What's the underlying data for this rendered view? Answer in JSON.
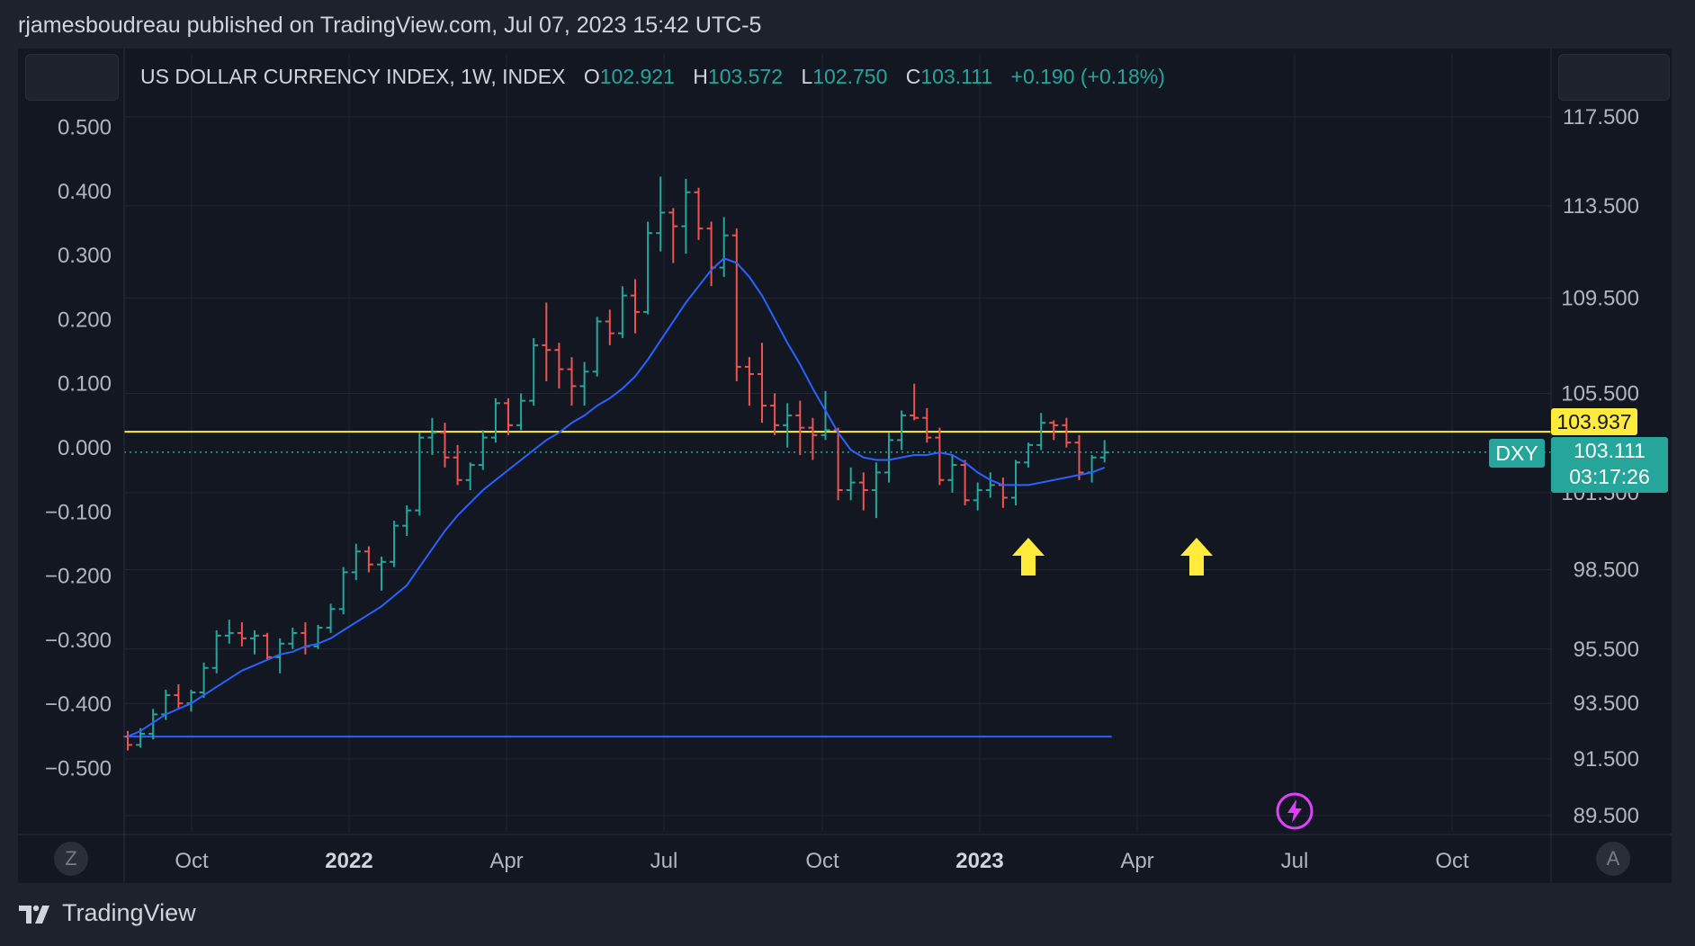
{
  "header": {
    "published_line": "rjamesboudreau published on TradingView.com, Jul 07, 2023 15:42 UTC-5"
  },
  "legend": {
    "symbol": "US DOLLAR CURRENCY INDEX, 1W, INDEX",
    "o_label": "O",
    "o_value": "102.921",
    "h_label": "H",
    "h_value": "103.572",
    "l_label": "L",
    "l_value": "102.750",
    "c_label": "C",
    "c_value": "103.111",
    "change": "+0.190 (+0.18%)"
  },
  "badges": {
    "level_value": "103.937",
    "symbol_tag": "DXY",
    "last_price": "103.111",
    "countdown": "03:17:26"
  },
  "buttons": {
    "left_scale": "Z",
    "right_scale": "A"
  },
  "footer": {
    "brand": "TradingView"
  },
  "colors": {
    "up": "#26a69a",
    "down": "#ef5350",
    "ma": "#2962ff",
    "level": "#ffeb3b",
    "background": "#131722"
  },
  "chart_data": {
    "type": "candlestick",
    "title": "US DOLLAR CURRENCY INDEX, 1W, INDEX",
    "timeframe": "1W",
    "left_axis": {
      "ticks": [
        "0.500",
        "0.400",
        "0.300",
        "0.200",
        "0.100",
        "0.000",
        "−0.100",
        "−0.200",
        "−0.300",
        "−0.400",
        "−0.500"
      ]
    },
    "right_axis": {
      "scale": "log",
      "ticks": [
        "117.500",
        "113.500",
        "109.500",
        "105.500",
        "101.500",
        "98.500",
        "95.500",
        "93.500",
        "91.500",
        "89.500"
      ]
    },
    "x_axis": {
      "ticks": [
        {
          "label": "Oct",
          "bold": false
        },
        {
          "label": "2022",
          "bold": true
        },
        {
          "label": "Apr",
          "bold": false
        },
        {
          "label": "Jul",
          "bold": false
        },
        {
          "label": "Oct",
          "bold": false
        },
        {
          "label": "2023",
          "bold": true
        },
        {
          "label": "Apr",
          "bold": false
        },
        {
          "label": "Jul",
          "bold": false
        },
        {
          "label": "Oct",
          "bold": false
        }
      ]
    },
    "candles": [
      [
        92.3,
        92.5,
        91.8,
        92.0
      ],
      [
        92.0,
        92.6,
        91.9,
        92.4
      ],
      [
        92.4,
        93.3,
        92.2,
        93.1
      ],
      [
        93.1,
        94.0,
        92.9,
        93.8
      ],
      [
        93.8,
        94.2,
        93.3,
        93.5
      ],
      [
        93.5,
        94.0,
        93.2,
        93.9
      ],
      [
        93.9,
        95.0,
        93.7,
        94.8
      ],
      [
        94.8,
        96.2,
        94.6,
        96.0
      ],
      [
        96.0,
        96.6,
        95.7,
        96.1
      ],
      [
        96.1,
        96.5,
        95.6,
        95.9
      ],
      [
        95.9,
        96.2,
        95.3,
        96.0
      ],
      [
        96.0,
        96.1,
        95.1,
        95.2
      ],
      [
        95.2,
        95.9,
        94.6,
        95.7
      ],
      [
        95.7,
        96.3,
        95.5,
        96.1
      ],
      [
        96.1,
        96.5,
        95.3,
        95.6
      ],
      [
        95.6,
        96.4,
        95.5,
        96.3
      ],
      [
        96.3,
        97.2,
        96.1,
        97.0
      ],
      [
        97.0,
        98.6,
        96.8,
        98.4
      ],
      [
        98.4,
        99.5,
        98.1,
        99.2
      ],
      [
        99.2,
        99.4,
        98.4,
        98.7
      ],
      [
        98.7,
        99.0,
        97.7,
        98.8
      ],
      [
        98.8,
        100.4,
        98.6,
        100.2
      ],
      [
        100.2,
        101.0,
        99.8,
        100.8
      ],
      [
        100.8,
        103.9,
        100.6,
        103.7
      ],
      [
        103.7,
        104.5,
        103.0,
        103.9
      ],
      [
        103.9,
        104.3,
        102.5,
        102.9
      ],
      [
        102.9,
        103.4,
        101.8,
        102.0
      ],
      [
        102.0,
        102.7,
        101.6,
        102.6
      ],
      [
        102.6,
        104.0,
        102.4,
        103.7
      ],
      [
        103.7,
        105.3,
        103.5,
        105.1
      ],
      [
        105.1,
        105.3,
        103.8,
        104.2
      ],
      [
        104.2,
        105.5,
        104.0,
        105.2
      ],
      [
        105.2,
        107.8,
        105.0,
        107.5
      ],
      [
        107.5,
        109.3,
        106.0,
        107.3
      ],
      [
        107.3,
        107.6,
        105.7,
        106.5
      ],
      [
        106.5,
        107.0,
        105.0,
        105.8
      ],
      [
        105.8,
        106.8,
        105.0,
        106.4
      ],
      [
        106.4,
        108.7,
        106.2,
        108.5
      ],
      [
        108.5,
        109.0,
        107.5,
        108.0
      ],
      [
        108.0,
        110.0,
        107.8,
        109.6
      ],
      [
        109.6,
        110.3,
        108.0,
        108.9
      ],
      [
        108.9,
        112.8,
        108.8,
        112.3
      ],
      [
        112.3,
        114.8,
        111.5,
        113.2
      ],
      [
        113.2,
        113.4,
        111.0,
        112.6
      ],
      [
        112.6,
        114.7,
        111.4,
        114.1
      ],
      [
        114.1,
        114.3,
        112.0,
        112.5
      ],
      [
        112.5,
        112.8,
        110.0,
        110.8
      ],
      [
        110.8,
        113.0,
        110.4,
        112.2
      ],
      [
        112.2,
        112.5,
        106.0,
        106.6
      ],
      [
        106.6,
        107.0,
        105.0,
        106.3
      ],
      [
        106.3,
        107.6,
        104.3,
        105.0
      ],
      [
        105.0,
        105.5,
        103.8,
        104.2
      ],
      [
        104.2,
        105.1,
        103.3,
        104.6
      ],
      [
        104.6,
        105.2,
        103.0,
        104.1
      ],
      [
        104.1,
        104.5,
        102.8,
        103.8
      ],
      [
        103.8,
        105.6,
        103.6,
        104.0
      ],
      [
        104.0,
        104.1,
        101.2,
        101.6
      ],
      [
        101.6,
        102.5,
        101.2,
        101.9
      ],
      [
        101.9,
        102.3,
        100.8,
        101.6
      ],
      [
        101.6,
        102.7,
        100.5,
        102.3
      ],
      [
        102.3,
        103.9,
        101.9,
        103.6
      ],
      [
        103.6,
        104.8,
        103.2,
        104.6
      ],
      [
        104.6,
        105.9,
        104.4,
        104.5
      ],
      [
        104.5,
        104.9,
        103.5,
        103.7
      ],
      [
        103.7,
        104.1,
        101.8,
        102.0
      ],
      [
        102.0,
        103.0,
        101.5,
        102.6
      ],
      [
        102.6,
        102.8,
        101.0,
        101.2
      ],
      [
        101.2,
        101.9,
        100.8,
        101.6
      ],
      [
        101.6,
        102.3,
        101.3,
        101.8
      ],
      [
        101.8,
        102.1,
        100.9,
        101.3
      ],
      [
        101.3,
        102.8,
        101.0,
        102.7
      ],
      [
        102.7,
        103.5,
        102.5,
        103.4
      ],
      [
        103.4,
        104.7,
        103.2,
        104.3
      ],
      [
        104.3,
        104.4,
        103.6,
        104.2
      ],
      [
        104.2,
        104.5,
        103.3,
        103.5
      ],
      [
        103.5,
        103.8,
        102.0,
        102.3
      ],
      [
        102.3,
        103.0,
        101.9,
        102.9
      ],
      [
        102.9,
        103.6,
        102.7,
        103.1
      ]
    ],
    "moving_average": [
      92.3,
      92.5,
      92.8,
      93.1,
      93.3,
      93.5,
      93.8,
      94.1,
      94.4,
      94.7,
      94.9,
      95.1,
      95.3,
      95.4,
      95.6,
      95.7,
      95.9,
      96.2,
      96.5,
      96.8,
      97.1,
      97.5,
      97.9,
      98.6,
      99.3,
      100.0,
      100.6,
      101.1,
      101.6,
      102.0,
      102.4,
      102.8,
      103.2,
      103.6,
      103.9,
      104.3,
      104.6,
      105.0,
      105.3,
      105.7,
      106.2,
      106.9,
      107.7,
      108.5,
      109.3,
      110.0,
      110.7,
      111.2,
      111.0,
      110.4,
      109.6,
      108.6,
      107.6,
      106.7,
      105.7,
      104.8,
      103.9,
      103.2,
      102.9,
      102.8,
      102.8,
      102.9,
      103.0,
      103.0,
      103.1,
      103.0,
      102.7,
      102.3,
      102.0,
      101.8,
      101.8,
      101.8,
      101.9,
      102.0,
      102.1,
      102.2,
      102.3,
      102.5
    ],
    "horizontal_levels": [
      {
        "value": 103.937,
        "color": "yellow",
        "style": "solid"
      },
      {
        "value": 92.3,
        "color": "blue",
        "style": "solid"
      },
      {
        "value": 103.111,
        "color": "teal",
        "style": "dotted"
      }
    ],
    "annotations": [
      {
        "type": "arrow-up",
        "color": "yellow",
        "near": "2023 Feb low"
      },
      {
        "type": "arrow-up",
        "color": "yellow",
        "near": "2023 May low"
      }
    ],
    "grid": true
  }
}
